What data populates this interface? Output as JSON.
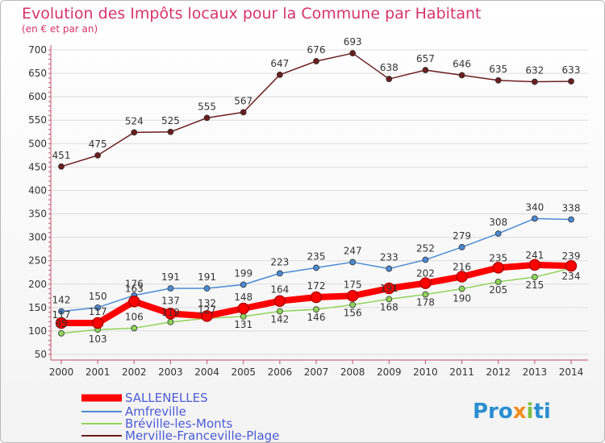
{
  "chart_data": {
    "type": "line",
    "title": "Evolution des Impôts locaux pour la Commune par Habitant",
    "subtitle": "(en € et par an)",
    "x": [
      2000,
      2001,
      2002,
      2003,
      2004,
      2005,
      2006,
      2007,
      2008,
      2009,
      2010,
      2011,
      2012,
      2013,
      2014
    ],
    "xlim": [
      2000,
      2014
    ],
    "ylim": [
      50,
      700
    ],
    "yticks": [
      50,
      100,
      150,
      200,
      250,
      300,
      350,
      400,
      450,
      500,
      550,
      600,
      650,
      700
    ],
    "grid": "horizontal",
    "legend_position": "bottom-left",
    "series": [
      {
        "name": "SALLENELLES",
        "color": "#ff0000",
        "values": [
          117,
          117,
          163,
          137,
          132,
          148,
          164,
          172,
          175,
          191,
          202,
          216,
          235,
          241,
          239
        ]
      },
      {
        "name": "Amfreville",
        "color": "#4a8ad4",
        "values": [
          142,
          150,
          176,
          191,
          191,
          199,
          223,
          235,
          247,
          233,
          252,
          279,
          308,
          340,
          338
        ]
      },
      {
        "name": "Bréville-les-Monts",
        "color": "#8fd45a",
        "values": [
          95,
          103,
          106,
          119,
          127,
          131,
          142,
          146,
          156,
          168,
          178,
          190,
          205,
          215,
          234
        ]
      },
      {
        "name": "Merville-Franceville-Plage",
        "color": "#6b1e1e",
        "values": [
          451,
          475,
          524,
          525,
          555,
          567,
          647,
          676,
          693,
          638,
          657,
          646,
          635,
          632,
          633
        ]
      }
    ]
  },
  "logo": {
    "p1": "Pro",
    "p2": "x",
    "p3": "i",
    "p4": "ti"
  }
}
